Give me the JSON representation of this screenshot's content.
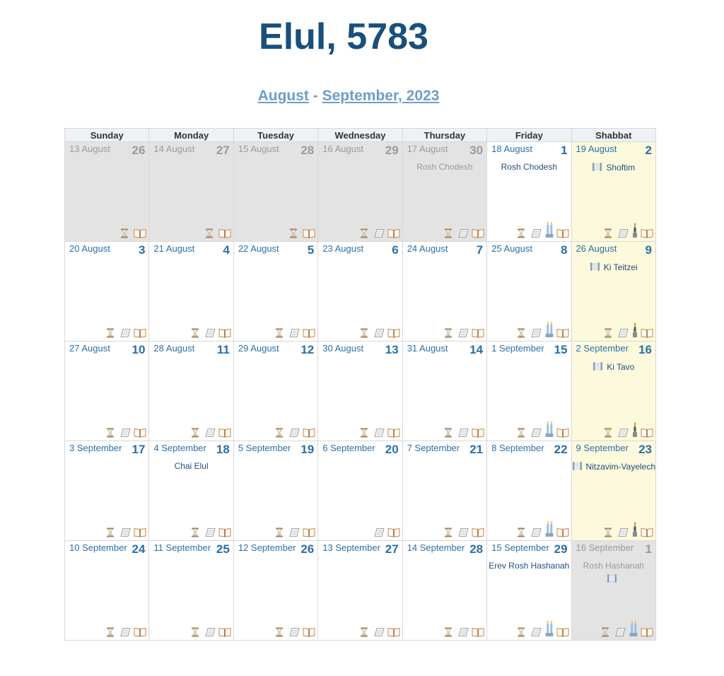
{
  "title": "Elul, 5783",
  "subtitle": {
    "link1": "August",
    "sep": "-",
    "link2": "September, 2023"
  },
  "weekdays": [
    "Sunday",
    "Monday",
    "Tuesday",
    "Wednesday",
    "Thursday",
    "Friday",
    "Shabbat"
  ],
  "colors": {
    "title": "#1a4f7a",
    "link": "#6d9ec9",
    "date": "#2a6fa8",
    "grey_cell": "#e3e3e3",
    "shabbat_cell": "#fdf9dc"
  },
  "weeks": [
    [
      {
        "greg": "13 August",
        "heb": "26",
        "state": "grey",
        "icons": [
          "hourglass",
          "book"
        ]
      },
      {
        "greg": "14 August",
        "heb": "27",
        "state": "grey",
        "icons": [
          "hourglass",
          "book"
        ]
      },
      {
        "greg": "15 August",
        "heb": "28",
        "state": "grey",
        "icons": [
          "hourglass",
          "book"
        ]
      },
      {
        "greg": "16 August",
        "heb": "29",
        "state": "grey",
        "icons": [
          "hourglass",
          "scroll",
          "book"
        ]
      },
      {
        "greg": "17 August",
        "heb": "30",
        "state": "grey",
        "events": [
          "Rosh Chodesh"
        ],
        "icons": [
          "hourglass",
          "scroll",
          "book"
        ]
      },
      {
        "greg": "18 August",
        "heb": "1",
        "state": "normal",
        "events": [
          "Rosh Chodesh"
        ],
        "icons": [
          "hourglass",
          "scroll",
          "candle",
          "book"
        ]
      },
      {
        "greg": "19 August",
        "heb": "2",
        "state": "shabbat",
        "parsha": "Shoftim",
        "icons": [
          "hourglass",
          "scroll",
          "havdalah",
          "book"
        ]
      }
    ],
    [
      {
        "greg": "20 August",
        "heb": "3",
        "state": "normal",
        "icons": [
          "hourglass",
          "scroll",
          "book"
        ]
      },
      {
        "greg": "21 August",
        "heb": "4",
        "state": "normal",
        "icons": [
          "hourglass",
          "scroll",
          "book"
        ]
      },
      {
        "greg": "22 August",
        "heb": "5",
        "state": "normal",
        "icons": [
          "hourglass",
          "scroll",
          "book"
        ]
      },
      {
        "greg": "23 August",
        "heb": "6",
        "state": "normal",
        "icons": [
          "hourglass",
          "scroll",
          "book"
        ]
      },
      {
        "greg": "24 August",
        "heb": "7",
        "state": "normal",
        "icons": [
          "hourglass",
          "scroll",
          "book"
        ]
      },
      {
        "greg": "25 August",
        "heb": "8",
        "state": "normal",
        "icons": [
          "hourglass",
          "scroll",
          "candle",
          "book"
        ]
      },
      {
        "greg": "26 August",
        "heb": "9",
        "state": "shabbat",
        "parsha": "Ki Teitzei",
        "icons": [
          "hourglass",
          "scroll",
          "havdalah",
          "book"
        ]
      }
    ],
    [
      {
        "greg": "27 August",
        "heb": "10",
        "state": "normal",
        "icons": [
          "hourglass",
          "scroll",
          "book"
        ]
      },
      {
        "greg": "28 August",
        "heb": "11",
        "state": "normal",
        "icons": [
          "hourglass",
          "scroll",
          "book"
        ]
      },
      {
        "greg": "29 August",
        "heb": "12",
        "state": "normal",
        "icons": [
          "hourglass",
          "scroll",
          "book"
        ]
      },
      {
        "greg": "30 August",
        "heb": "13",
        "state": "normal",
        "icons": [
          "hourglass",
          "scroll",
          "book"
        ]
      },
      {
        "greg": "31 August",
        "heb": "14",
        "state": "normal",
        "icons": [
          "hourglass",
          "scroll",
          "book"
        ]
      },
      {
        "greg": "1 September",
        "heb": "15",
        "state": "normal",
        "icons": [
          "hourglass",
          "scroll",
          "candle",
          "book"
        ]
      },
      {
        "greg": "2 September",
        "heb": "16",
        "state": "shabbat",
        "parsha": "Ki Tavo",
        "icons": [
          "hourglass",
          "scroll",
          "havdalah",
          "book"
        ]
      }
    ],
    [
      {
        "greg": "3 September",
        "heb": "17",
        "state": "normal",
        "icons": [
          "hourglass",
          "scroll",
          "book"
        ]
      },
      {
        "greg": "4 September",
        "heb": "18",
        "state": "normal",
        "events": [
          "Chai Elul"
        ],
        "icons": [
          "hourglass",
          "scroll",
          "book"
        ]
      },
      {
        "greg": "5 September",
        "heb": "19",
        "state": "normal",
        "icons": [
          "hourglass",
          "scroll",
          "book"
        ]
      },
      {
        "greg": "6 September",
        "heb": "20",
        "state": "normal",
        "icons": [
          "scroll",
          "book"
        ]
      },
      {
        "greg": "7 September",
        "heb": "21",
        "state": "normal",
        "icons": [
          "hourglass",
          "scroll",
          "book"
        ]
      },
      {
        "greg": "8 September",
        "heb": "22",
        "state": "normal",
        "icons": [
          "hourglass",
          "scroll",
          "candle",
          "book"
        ]
      },
      {
        "greg": "9 September",
        "heb": "23",
        "state": "shabbat",
        "parsha": "Nitzavim-Vayelech",
        "icons": [
          "hourglass",
          "scroll",
          "havdalah",
          "book"
        ]
      }
    ],
    [
      {
        "greg": "10 September",
        "heb": "24",
        "state": "normal",
        "icons": [
          "hourglass",
          "scroll",
          "book"
        ]
      },
      {
        "greg": "11 September",
        "heb": "25",
        "state": "normal",
        "icons": [
          "hourglass",
          "scroll",
          "book"
        ]
      },
      {
        "greg": "12 September",
        "heb": "26",
        "state": "normal",
        "icons": [
          "hourglass",
          "scroll",
          "book"
        ]
      },
      {
        "greg": "13 September",
        "heb": "27",
        "state": "normal",
        "icons": [
          "hourglass",
          "scroll",
          "book"
        ]
      },
      {
        "greg": "14 September",
        "heb": "28",
        "state": "normal",
        "icons": [
          "hourglass",
          "scroll",
          "book"
        ]
      },
      {
        "greg": "15 September",
        "heb": "29",
        "state": "normal",
        "events": [
          "Erev Rosh Hashanah"
        ],
        "icons": [
          "hourglass",
          "scroll",
          "candle",
          "book"
        ]
      },
      {
        "greg": "16 September",
        "heb": "1",
        "state": "grey",
        "events": [
          "Rosh Hashanah"
        ],
        "scroll_only": true,
        "icons": [
          "hourglass",
          "scroll",
          "candle",
          "book"
        ]
      }
    ]
  ]
}
